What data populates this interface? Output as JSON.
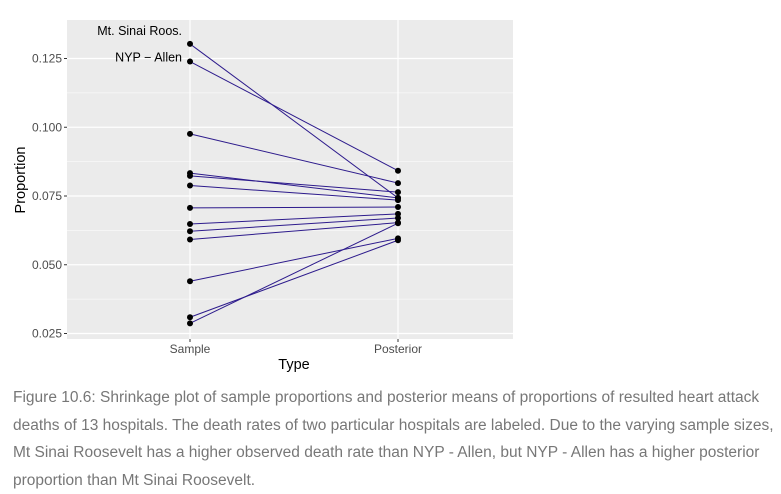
{
  "chart_data": {
    "type": "line",
    "categories": [
      "Sample",
      "Posterior"
    ],
    "xlabel": "Type",
    "ylabel": "Proportion",
    "ylim": [
      0.023,
      0.139
    ],
    "yticks": [
      0.025,
      0.05,
      0.075,
      0.1,
      0.125
    ],
    "ytick_labels": [
      "0.025",
      "0.050",
      "0.075",
      "0.100",
      "0.125"
    ],
    "grid": true,
    "colors": {
      "panel": "#ebebeb",
      "grid": "#ffffff",
      "line": "#2d1b8c",
      "point": "#000000"
    },
    "series": [
      {
        "values": [
          0.1303,
          0.0743
        ]
      },
      {
        "values": [
          0.1239,
          0.0842
        ]
      },
      {
        "values": [
          0.0976,
          0.0797
        ]
      },
      {
        "values": [
          0.0833,
          0.0743
        ]
      },
      {
        "values": [
          0.0823,
          0.0764
        ]
      },
      {
        "values": [
          0.0788,
          0.0735
        ]
      },
      {
        "values": [
          0.0707,
          0.071
        ]
      },
      {
        "values": [
          0.0648,
          0.0685
        ]
      },
      {
        "values": [
          0.0622,
          0.067
        ]
      },
      {
        "values": [
          0.0592,
          0.0653
        ]
      },
      {
        "values": [
          0.044,
          0.0596
        ]
      },
      {
        "values": [
          0.0309,
          0.0589
        ]
      },
      {
        "values": [
          0.0287,
          0.0651
        ]
      }
    ],
    "annotations": [
      {
        "text": "Mt. Sinai Roos.",
        "series_index": 0
      },
      {
        "text": "NYP − Allen",
        "series_index": 1
      }
    ]
  },
  "caption": "Figure 10.6: Shrinkage plot of sample proportions and posterior means of proportions of resulted heart attack deaths of 13 hospitals. The death rates of two particular hospitals are labeled. Due to the varying sample sizes, Mt Sinai Roosevelt has a higher observed death rate than NYP - Allen, but NYP - Allen has a higher posterior proportion than Mt Sinai Roosevelt."
}
